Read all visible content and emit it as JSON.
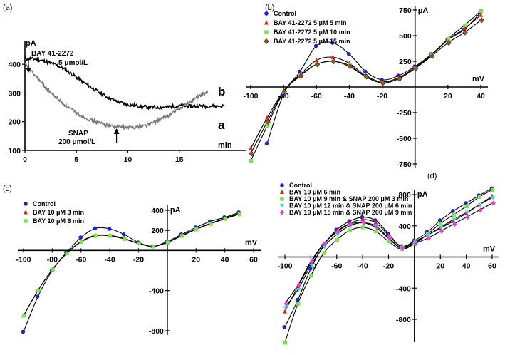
{
  "chart_data": [
    {
      "panel": "(a)",
      "type": "line",
      "xlabel": "min",
      "ylabel": "pA",
      "xlim": [
        0,
        18
      ],
      "ylim": [
        100,
        450
      ],
      "xticks": [
        0,
        5,
        10,
        15
      ],
      "yticks": [
        100,
        200,
        300,
        400
      ],
      "annotations": [
        "BAY 41-2272",
        "5 μmol/L",
        "SNAP",
        "200 μmol/L"
      ],
      "series": [
        {
          "name": "b",
          "color": "#000000",
          "x": [
            0,
            1,
            2,
            3,
            4,
            5,
            6,
            7,
            8,
            9,
            10,
            11,
            12,
            13,
            14,
            15,
            16,
            17,
            18,
            19.5
          ],
          "values": [
            420,
            418,
            410,
            398,
            380,
            355,
            330,
            307,
            285,
            270,
            260,
            255,
            250,
            250,
            252,
            255,
            254,
            255,
            254,
            255
          ]
        },
        {
          "name": "a",
          "color": "#7a7a7a",
          "x": [
            0,
            1,
            2,
            3,
            4,
            5,
            6,
            7,
            8,
            9,
            10,
            11,
            12,
            13,
            14,
            15,
            16,
            17,
            17.8
          ],
          "values": [
            400,
            360,
            320,
            285,
            255,
            230,
            212,
            198,
            188,
            182,
            180,
            182,
            190,
            205,
            222,
            245,
            268,
            290,
            305
          ]
        }
      ]
    },
    {
      "panel": "(b)",
      "type": "line",
      "xlabel": "mV",
      "ylabel": "pA",
      "xlim": [
        -100,
        40
      ],
      "ylim": [
        -750,
        750
      ],
      "xticks": [
        -100,
        -80,
        -60,
        -40,
        -20,
        20,
        40
      ],
      "yticks": [
        -750,
        -500,
        -250,
        250,
        500,
        750
      ],
      "x": [
        -100,
        -90,
        -80,
        -70,
        -60,
        -50,
        -40,
        -30,
        -20,
        -10,
        0,
        10,
        20,
        30,
        40
      ],
      "series": [
        {
          "name": "Control",
          "color": "#1f1fd6",
          "marker": "circle",
          "values": [
            -1150,
            -550,
            -70,
            150,
            400,
            430,
            320,
            150,
            70,
            110,
            200,
            320,
            460,
            560,
            730
          ]
        },
        {
          "name": "BAY 41-2272  5 μM  5 min",
          "color": "#e02020",
          "marker": "triangle",
          "values": [
            -600,
            -300,
            -40,
            120,
            260,
            290,
            230,
            110,
            50,
            90,
            190,
            310,
            460,
            570,
            700
          ]
        },
        {
          "name": "BAY 41-2272  5 μM 10 min",
          "color": "#7ee04a",
          "marker": "square",
          "values": [
            -720,
            -380,
            -50,
            110,
            220,
            250,
            210,
            100,
            40,
            80,
            180,
            310,
            470,
            600,
            740
          ]
        },
        {
          "name": "BAY 41-2272  5 μM 15 min",
          "color": "#9a5a28",
          "marker": "diamond",
          "values": [
            -650,
            -340,
            -45,
            105,
            220,
            250,
            200,
            100,
            40,
            80,
            180,
            300,
            430,
            530,
            650
          ]
        }
      ]
    },
    {
      "panel": "(c)",
      "type": "line",
      "xlabel": "mV",
      "ylabel": "pA",
      "xlim": [
        -100,
        60
      ],
      "ylim": [
        -800,
        400
      ],
      "xticks": [
        -100,
        -80,
        -60,
        -40,
        -20,
        20,
        40,
        60
      ],
      "yticks": [
        -800,
        -400,
        200,
        400
      ],
      "x": [
        -100,
        -90,
        -80,
        -70,
        -60,
        -50,
        -40,
        -30,
        -20,
        -10,
        0,
        10,
        20,
        30,
        40,
        50
      ],
      "series": [
        {
          "name": "Control",
          "color": "#1f1fd6",
          "marker": "circle",
          "values": [
            -810,
            -460,
            -200,
            -20,
            130,
            220,
            215,
            160,
            80,
            40,
            90,
            160,
            230,
            290,
            330,
            380
          ]
        },
        {
          "name": "BAY 10 μM 3 min",
          "color": "#e02020",
          "marker": "triangle",
          "values": [
            -650,
            -400,
            -190,
            -30,
            90,
            150,
            150,
            120,
            70,
            40,
            80,
            150,
            215,
            270,
            320,
            370
          ]
        },
        {
          "name": "BAY 10 μM 6 min",
          "color": "#7ee04a",
          "marker": "square",
          "values": [
            -650,
            -400,
            -190,
            -30,
            85,
            145,
            145,
            115,
            70,
            40,
            80,
            145,
            210,
            265,
            315,
            360
          ]
        }
      ]
    },
    {
      "panel": "(d)",
      "type": "line",
      "xlabel": "mV",
      "ylabel": "pA",
      "xlim": [
        -100,
        60
      ],
      "ylim": [
        -900,
        800
      ],
      "xticks": [
        -100,
        -80,
        -60,
        -40,
        -20,
        20,
        40,
        60
      ],
      "yticks": [
        -800,
        -400,
        400,
        800
      ],
      "x": [
        -100,
        -90,
        -80,
        -70,
        -60,
        -50,
        -40,
        -30,
        -20,
        -10,
        0,
        10,
        20,
        30,
        40,
        50,
        60
      ],
      "series": [
        {
          "name": "Control",
          "color": "#1f1fd6",
          "marker": "circle",
          "values": [
            -900,
            -550,
            -150,
            150,
            350,
            460,
            510,
            470,
            300,
            130,
            210,
            320,
            470,
            590,
            690,
            790,
            880
          ]
        },
        {
          "name": "BAY 10 μM 6 min",
          "color": "#e02020",
          "marker": "triangle",
          "values": [
            -700,
            -380,
            -80,
            170,
            330,
            430,
            480,
            440,
            280,
            140,
            200,
            280,
            370,
            460,
            560,
            670,
            780
          ]
        },
        {
          "name": "BAY 10 μM 9 min & SNAP 200 μM  3 min",
          "color": "#7ee04a",
          "marker": "square",
          "values": [
            -1100,
            -600,
            -240,
            50,
            220,
            340,
            380,
            330,
            200,
            100,
            170,
            290,
            430,
            540,
            650,
            770,
            860
          ]
        },
        {
          "name": "BAY 10 μM 12 min & SNAP 200 μM 6 min",
          "color": "#2ed8e0",
          "marker": "triangle-down",
          "values": [
            -650,
            -420,
            -110,
            130,
            290,
            400,
            440,
            400,
            250,
            120,
            190,
            280,
            380,
            480,
            570,
            670,
            760
          ]
        },
        {
          "name": "BAY 10 μM 15 min & SNAP 200 μM 9 min",
          "color": "#e040e0",
          "marker": "diamond",
          "values": [
            -600,
            -360,
            -60,
            170,
            320,
            420,
            440,
            380,
            240,
            110,
            170,
            240,
            330,
            420,
            510,
            600,
            690
          ]
        }
      ]
    }
  ]
}
